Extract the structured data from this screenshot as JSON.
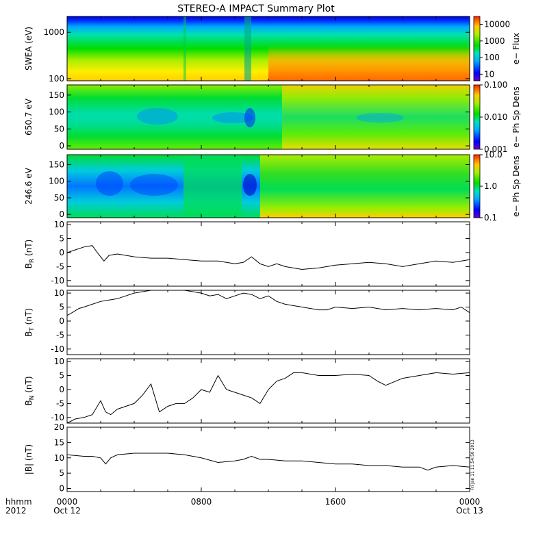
{
  "title": "STEREO-A IMPACT Summary Plot",
  "footer": {
    "left_label": "hhmm",
    "year": "2012",
    "x_ticks": [
      {
        "time": "0000",
        "date": "Oct 12"
      },
      {
        "time": "0800",
        "date": ""
      },
      {
        "time": "1600",
        "date": ""
      },
      {
        "time": "0000",
        "date": "Oct 13"
      }
    ]
  },
  "stamp": "Fri Jan 11 11:54:50 2013",
  "chart_data": [
    {
      "type": "heatmap",
      "ylabel": "SWEA (eV)",
      "y_scale": "log",
      "ylim": [
        90,
        2200
      ],
      "yticks": [
        "100",
        "1000"
      ],
      "ytick_values": [
        100,
        1000
      ],
      "colorbar": {
        "label": "e− Flux",
        "scale": "log",
        "range": [
          4,
          30000
        ],
        "tick_labels": [
          "10000",
          "1000",
          "100",
          "10"
        ],
        "tick_values": [
          10000,
          1000,
          100,
          10
        ]
      },
      "xlim_hours": [
        0,
        24
      ],
      "column_blocks_hours": [
        [
          0,
          2
        ],
        [
          2,
          7
        ],
        [
          7,
          10.5
        ],
        [
          10.5,
          12.8
        ],
        [
          12.8,
          24
        ]
      ]
    },
    {
      "type": "heatmap",
      "ylabel": "650.7 eV",
      "ylim": [
        -10,
        180
      ],
      "yticks": [
        "0",
        "50",
        "100",
        "150"
      ],
      "ytick_values": [
        0,
        50,
        100,
        150
      ],
      "colorbar": {
        "label": "e− Ph Sp Dens",
        "scale": "log",
        "range": [
          0.001,
          0.1
        ],
        "tick_labels": [
          "0.100",
          "0.010",
          "0.001"
        ],
        "tick_values": [
          0.1,
          0.01,
          0.001
        ]
      },
      "xlim_hours": [
        0,
        24
      ]
    },
    {
      "type": "heatmap",
      "ylabel": "246.6 eV",
      "ylim": [
        -10,
        180
      ],
      "yticks": [
        "0",
        "50",
        "100",
        "150"
      ],
      "ytick_values": [
        0,
        50,
        100,
        150
      ],
      "colorbar": {
        "label": "e− Ph Sp Dens",
        "scale": "log",
        "range": [
          0.1,
          10
        ],
        "tick_labels": [
          "10.0",
          "1.0",
          "0.1"
        ],
        "tick_values": [
          10,
          1,
          0.1
        ]
      },
      "xlim_hours": [
        0,
        24
      ]
    },
    {
      "type": "line",
      "ylabel": "B",
      "ylabel_sub": "R",
      "ylabel_unit": " (nT)",
      "ylim": [
        -12,
        11
      ],
      "yticks": [
        "10",
        "5",
        "0",
        "-5",
        "-10"
      ],
      "ytick_values": [
        10,
        5,
        0,
        -5,
        -10
      ],
      "x_hours": [
        0,
        0.5,
        1,
        1.5,
        1.8,
        2.2,
        2.5,
        3,
        3.5,
        4,
        5,
        6,
        7,
        8,
        9,
        10,
        10.5,
        11,
        11.5,
        12,
        12.5,
        13,
        14,
        15,
        16,
        17,
        18,
        19,
        20,
        21,
        22,
        23,
        24
      ],
      "values": [
        0,
        1,
        2,
        2.5,
        0,
        -3,
        -1,
        -0.5,
        -1,
        -1.5,
        -2,
        -2,
        -2.5,
        -3,
        -3,
        -4,
        -3.5,
        -1.5,
        -4,
        -5,
        -4,
        -5,
        -6,
        -5.5,
        -4.5,
        -4,
        -3.5,
        -4,
        -5,
        -4,
        -3,
        -3.5,
        -2.5
      ]
    },
    {
      "type": "line",
      "ylabel": "B",
      "ylabel_sub": "T",
      "ylabel_unit": " (nT)",
      "ylim": [
        -12,
        11
      ],
      "yticks": [
        "10",
        "5",
        "0",
        "-5",
        "-10"
      ],
      "ytick_values": [
        10,
        5,
        0,
        -5,
        -10
      ],
      "x_hours": [
        0,
        0.3,
        0.7,
        1,
        1.5,
        2,
        2.5,
        3,
        3.5,
        4,
        5,
        6,
        7,
        8,
        8.5,
        9,
        9.5,
        10,
        10.5,
        11,
        11.5,
        12,
        12.5,
        13,
        14,
        15,
        15.5,
        16,
        17,
        18,
        19,
        20,
        21,
        22,
        23,
        23.5,
        24
      ],
      "values": [
        2,
        3,
        4.5,
        5,
        6,
        7,
        7.5,
        8,
        9,
        10,
        11,
        11,
        11,
        10,
        9,
        9.5,
        8,
        9,
        10,
        9.5,
        8,
        9,
        7,
        6,
        5,
        4,
        4,
        5,
        4.5,
        5,
        4,
        4.5,
        4,
        4.5,
        4,
        5,
        3
      ]
    },
    {
      "type": "line",
      "ylabel": "B",
      "ylabel_sub": "N",
      "ylabel_unit": " (nT)",
      "ylim": [
        -12,
        11
      ],
      "yticks": [
        "10",
        "5",
        "0",
        "-5",
        "-10"
      ],
      "ytick_values": [
        10,
        5,
        0,
        -5,
        -10
      ],
      "x_hours": [
        0,
        0.5,
        1,
        1.5,
        2,
        2.3,
        2.6,
        3,
        4,
        4.5,
        5,
        5.5,
        6,
        6.5,
        7,
        7.5,
        8,
        8.5,
        9,
        9.5,
        10,
        10.5,
        11,
        11.5,
        12,
        12.5,
        13,
        13.5,
        14,
        15,
        16,
        17,
        18,
        18.5,
        19,
        20,
        21,
        22,
        23,
        24
      ],
      "values": [
        -12,
        -10.5,
        -10,
        -9,
        -4,
        -8,
        -9,
        -7,
        -5,
        -2,
        2,
        -8,
        -6,
        -5,
        -5,
        -3,
        0,
        -1,
        5,
        0,
        -1,
        -2,
        -3,
        -5,
        0,
        3,
        4,
        6,
        6,
        5,
        5,
        5.5,
        5,
        3,
        1.5,
        4,
        5,
        6,
        5.5,
        6
      ]
    },
    {
      "type": "line",
      "ylabel": "|B| (nT)",
      "ylim": [
        -1,
        20
      ],
      "yticks": [
        "20",
        "15",
        "10",
        "5",
        "0"
      ],
      "ytick_values": [
        20,
        15,
        10,
        5,
        0
      ],
      "x_hours": [
        0,
        1,
        1.5,
        2,
        2.3,
        2.6,
        3,
        4,
        5,
        6,
        7,
        8,
        9,
        10,
        10.5,
        11,
        11.5,
        12,
        13,
        14,
        15,
        16,
        17,
        18,
        19,
        20,
        21,
        21.5,
        22,
        23,
        24
      ],
      "values": [
        11,
        10.5,
        10.5,
        10,
        8,
        10,
        11,
        11.5,
        11.5,
        11.5,
        11,
        10,
        8.5,
        9,
        9.5,
        10.5,
        9.5,
        9.5,
        9,
        9,
        8.5,
        8,
        8,
        7.5,
        7.5,
        7,
        7,
        6,
        7,
        7.5,
        7
      ]
    }
  ]
}
